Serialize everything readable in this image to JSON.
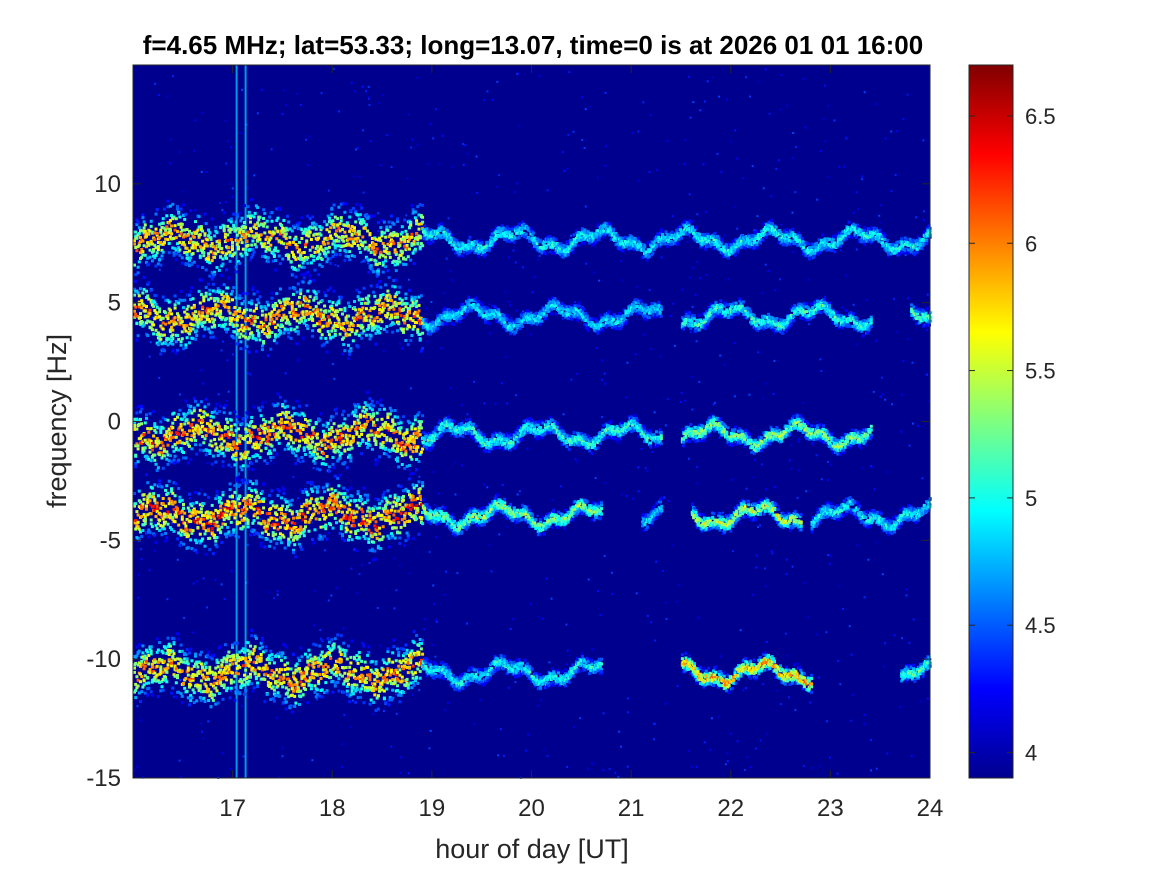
{
  "chart_data": {
    "type": "heatmap",
    "title": "f=4.65 MHz;  lat=53.33; long=13.07, time=0 is at 2026 01 01 16:00",
    "xlabel": "hour of day [UT]",
    "ylabel": "frequency [Hz]",
    "xlim": [
      16,
      24
    ],
    "ylim": [
      -15,
      15
    ],
    "x_ticks": [
      "17",
      "18",
      "19",
      "20",
      "21",
      "22",
      "23",
      "24"
    ],
    "y_ticks": [
      "-15",
      "-10",
      "-5",
      "0",
      "5",
      "10"
    ],
    "colorbar": {
      "range": [
        3.9,
        6.7
      ],
      "ticks": [
        "4",
        "4.5",
        "5",
        "5.5",
        "6",
        "6.5"
      ],
      "colormap": "jet"
    },
    "background_level": 3.95,
    "vertical_interference_lines_hour": [
      17.03,
      17.12
    ],
    "bands": [
      {
        "center_hz": 7.7,
        "segments": [
          [
            16.0,
            18.9,
            6.2
          ],
          [
            18.9,
            24.0,
            5.2
          ]
        ]
      },
      {
        "center_hz": 4.5,
        "segments": [
          [
            16.0,
            18.9,
            6.3
          ],
          [
            18.9,
            21.3,
            5.1
          ],
          [
            21.5,
            23.4,
            5.3
          ],
          [
            23.8,
            24.0,
            5.4
          ]
        ]
      },
      {
        "center_hz": -0.5,
        "segments": [
          [
            16.0,
            18.9,
            6.4
          ],
          [
            18.9,
            21.3,
            5.3
          ],
          [
            21.5,
            23.4,
            5.6
          ]
        ]
      },
      {
        "center_hz": -3.9,
        "segments": [
          [
            16.0,
            18.9,
            6.5
          ],
          [
            18.9,
            20.7,
            5.6
          ],
          [
            21.1,
            21.3,
            5.1
          ],
          [
            21.6,
            22.7,
            5.8
          ],
          [
            22.8,
            24.0,
            5.2
          ]
        ]
      },
      {
        "center_hz": -10.5,
        "segments": [
          [
            16.0,
            18.9,
            6.3
          ],
          [
            18.9,
            20.7,
            5.2
          ],
          [
            21.5,
            22.8,
            6.2
          ],
          [
            23.7,
            24.0,
            5.4
          ]
        ]
      }
    ]
  }
}
